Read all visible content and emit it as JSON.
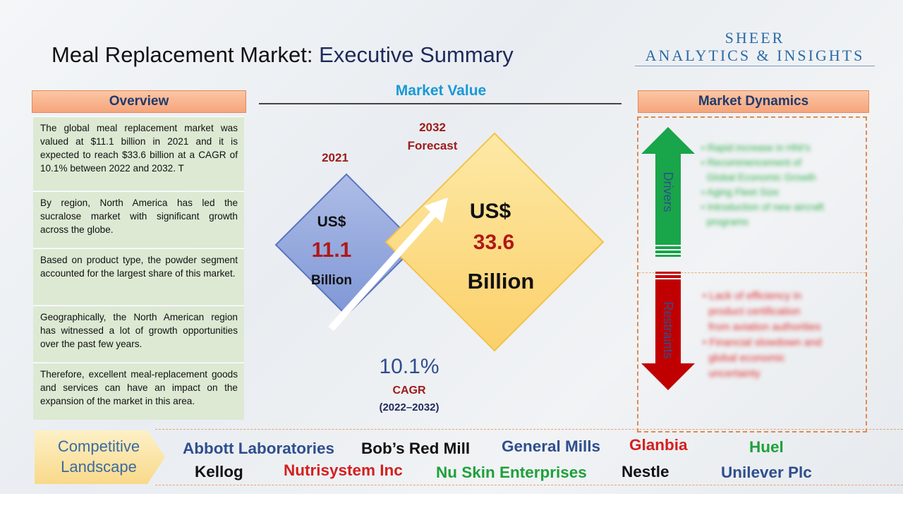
{
  "title": {
    "main": "Meal Replacement Market:",
    "sub": "Executive Summary"
  },
  "logo": {
    "line1": "SHEER",
    "line2": "ANALYTICS & INSIGHTS"
  },
  "overview": {
    "header": "Overview",
    "paragraphs": [
      "The global meal replacement market was valued at $11.1 billion in 2021 and it is expected to reach $33.6 billion at a CAGR of 10.1% between 2022 and 2032. T",
      "By region, North America has led the sucralose market with significant growth across the globe.",
      "Based on product type, the powder segment accounted for the largest share of this market.",
      "Geographically, the North American region has witnessed a lot of growth opportunities over the past few years.",
      "Therefore, excellent meal-replacement goods and services can have an impact on the expansion of the market in this area."
    ]
  },
  "market_value": {
    "title": "Market Value",
    "y2021": {
      "year": "2021",
      "currency": "US$",
      "value": "11.1",
      "unit": "Billion"
    },
    "y2032": {
      "year": "2032",
      "forecast": "Forecast",
      "currency": "US$",
      "value": "33.6",
      "unit": "Billion"
    },
    "cagr": {
      "value": "10.1%",
      "label": "CAGR",
      "years": "(2022–2032)"
    }
  },
  "dynamics": {
    "header": "Market Dynamics",
    "drivers_label": "Drivers",
    "restraints_label": "Restraints",
    "drivers": [
      "Rapid increase in HNI's",
      "Recommencement of",
      "Global Economic Growth",
      "Aging Fleet Size",
      "Introduction of new aircraft",
      "programs"
    ],
    "restraints": [
      "Lack of efficiency in",
      "product certification",
      "from aviation authorities",
      "Financial slowdown and",
      "global economic",
      "uncertainty"
    ]
  },
  "competitive": {
    "label_line1": "Competitive",
    "label_line2": "Landscape",
    "companies": [
      {
        "name": "Abbott Laboratories",
        "color": "#2f4e8d"
      },
      {
        "name": "Bob’s Red Mill",
        "color": "#111111"
      },
      {
        "name": "General Mills",
        "color": "#2f4e8d"
      },
      {
        "name": "Glanbia",
        "color": "#d41f1f"
      },
      {
        "name": "Huel",
        "color": "#1fa03a"
      },
      {
        "name": "Kellog",
        "color": "#111111"
      },
      {
        "name": "Nutrisystem Inc",
        "color": "#d41f1f"
      },
      {
        "name": "Nu Skin Enterprises",
        "color": "#1fa03a"
      },
      {
        "name": "Nestle",
        "color": "#111111"
      },
      {
        "name": "Unilever Plc",
        "color": "#2f4e8d"
      }
    ]
  },
  "colors": {
    "accent_blue": "#1a98d6",
    "value_red": "#b01818",
    "driver_green": "#19a54a",
    "restraint_red": "#c00000"
  }
}
